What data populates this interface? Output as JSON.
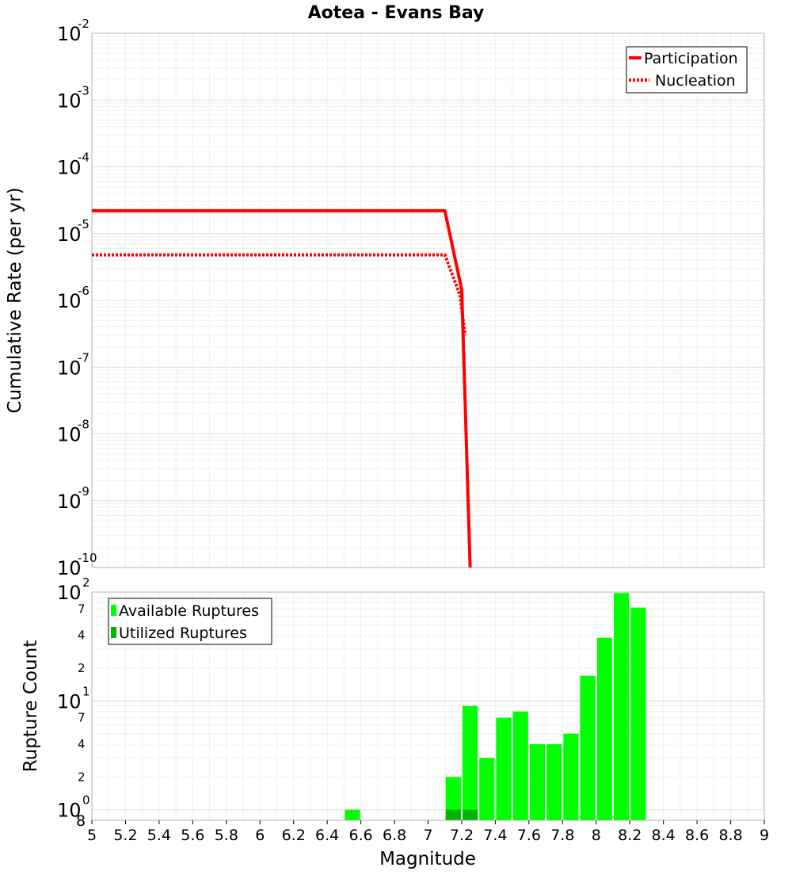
{
  "chart_data": [
    {
      "type": "line",
      "title": "Aotea - Evans Bay",
      "xlabel": "",
      "ylabel": "Cumulative Rate (per yr)",
      "yscale": "log",
      "xlim": [
        5,
        9
      ],
      "ylim_exponents": [
        -10,
        -2
      ],
      "y_ticks": [
        {
          "base": "10",
          "exp": "-2"
        },
        {
          "base": "10",
          "exp": "-3"
        },
        {
          "base": "10",
          "exp": "-4"
        },
        {
          "base": "10",
          "exp": "-5"
        },
        {
          "base": "10",
          "exp": "-6"
        },
        {
          "base": "10",
          "exp": "-7"
        },
        {
          "base": "10",
          "exp": "-8"
        },
        {
          "base": "10",
          "exp": "-9"
        },
        {
          "base": "10",
          "exp": "-10"
        }
      ],
      "legend_position": "top-right",
      "series": [
        {
          "name": "Participation",
          "color": "#ff0000",
          "style": "solid",
          "x": [
            5.0,
            7.1,
            7.2,
            7.25
          ],
          "y": [
            2.2e-05,
            2.2e-05,
            1.45e-06,
            1e-10
          ]
        },
        {
          "name": "Nucleation",
          "color": "#ff0000",
          "style": "dotted",
          "x": [
            5.0,
            7.1,
            7.19,
            7.22
          ],
          "y": [
            4.8e-06,
            4.8e-06,
            1.2e-06,
            3e-07
          ]
        }
      ]
    },
    {
      "type": "bar",
      "xlabel": "Magnitude",
      "ylabel": "Rupture Count",
      "yscale": "log",
      "xlim": [
        5,
        9
      ],
      "ylim": [
        0.8,
        100
      ],
      "bin_width": 0.1,
      "x_ticks": [
        "5",
        "5.2",
        "5.4",
        "5.6",
        "5.8",
        "6",
        "6.2",
        "6.4",
        "6.6",
        "6.8",
        "7",
        "7.2",
        "7.4",
        "7.6",
        "7.8",
        "8",
        "8.2",
        "8.4",
        "8.6",
        "8.8",
        "9"
      ],
      "y_major_ticks": [
        {
          "base": "10",
          "exp": "2"
        },
        {
          "base": "10",
          "exp": "1"
        },
        {
          "base": "10",
          "exp": "0"
        }
      ],
      "y_minor_ticks": [
        {
          "value": 70,
          "label": "7"
        },
        {
          "value": 40,
          "label": "4"
        },
        {
          "value": 20,
          "label": "2"
        },
        {
          "value": 7,
          "label": "7"
        },
        {
          "value": 4,
          "label": "4"
        },
        {
          "value": 2,
          "label": "2"
        },
        {
          "value": 0.8,
          "label": "8"
        }
      ],
      "legend_position": "top-left",
      "series": [
        {
          "name": "Available Ruptures",
          "color": "#00ff00",
          "x": [
            6.55,
            7.15,
            7.25,
            7.35,
            7.45,
            7.55,
            7.65,
            7.75,
            7.85,
            7.95,
            8.05,
            8.15,
            8.25
          ],
          "values": [
            1,
            2,
            9,
            3,
            7,
            8,
            4,
            4,
            5,
            17,
            38,
            98,
            72
          ]
        },
        {
          "name": "Utilized Ruptures",
          "color": "#00b400",
          "x": [
            7.15,
            7.25
          ],
          "values": [
            1,
            1
          ]
        }
      ]
    }
  ]
}
